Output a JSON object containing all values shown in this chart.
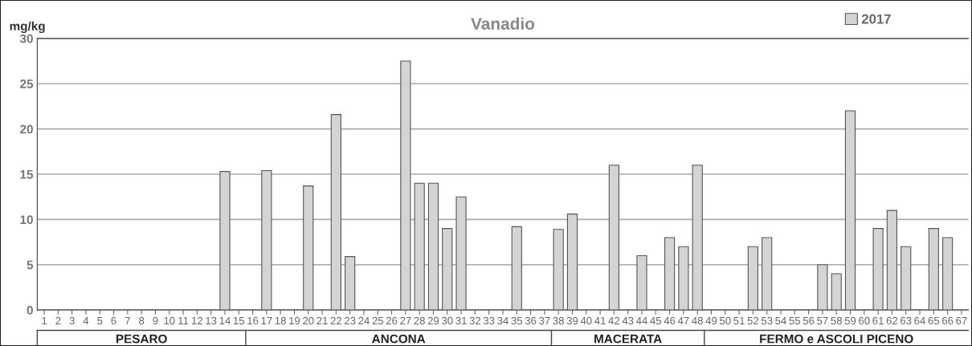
{
  "chart_data": {
    "type": "bar",
    "title": "Vanadio",
    "ylabel": "mg/kg",
    "categories": [
      "1",
      "2",
      "3",
      "4",
      "5",
      "6",
      "7",
      "8",
      "9",
      "10",
      "11",
      "12",
      "13",
      "14",
      "15",
      "16",
      "17",
      "18",
      "19",
      "20",
      "21",
      "22",
      "23",
      "24",
      "25",
      "26",
      "27",
      "28",
      "29",
      "30",
      "31",
      "32",
      "33",
      "34",
      "35",
      "36",
      "37",
      "38",
      "39",
      "40",
      "41",
      "42",
      "43",
      "44",
      "45",
      "46",
      "47",
      "48",
      "49",
      "50",
      "51",
      "52",
      "53",
      "54",
      "55",
      "56",
      "57",
      "58",
      "59",
      "60",
      "61",
      "62",
      "63",
      "64",
      "65",
      "66",
      "67"
    ],
    "series": [
      {
        "name": "2017",
        "color": "#d4d4d4",
        "values": [
          null,
          null,
          null,
          null,
          null,
          null,
          null,
          null,
          null,
          null,
          null,
          null,
          null,
          15.3,
          null,
          null,
          15.4,
          null,
          null,
          13.7,
          null,
          21.6,
          5.9,
          null,
          null,
          null,
          27.5,
          14.0,
          14.0,
          9.0,
          12.5,
          null,
          null,
          null,
          9.2,
          null,
          null,
          8.9,
          10.6,
          null,
          null,
          16.0,
          null,
          6.0,
          null,
          8.0,
          7.0,
          16.0,
          null,
          null,
          null,
          7.0,
          8.0,
          null,
          null,
          null,
          5.0,
          4.0,
          22.0,
          null,
          9.0,
          11.0,
          7.0,
          null,
          9.0,
          8.0,
          null
        ]
      }
    ],
    "ylim": [
      0,
      30
    ],
    "yticks": [
      0,
      5,
      10,
      15,
      20,
      25,
      30
    ],
    "grid": "y",
    "legend": "top right",
    "annotations": [
      "PESARO",
      "ANCONA",
      "MACERATA",
      "FERMO e ASCOLI PICENO"
    ]
  }
}
